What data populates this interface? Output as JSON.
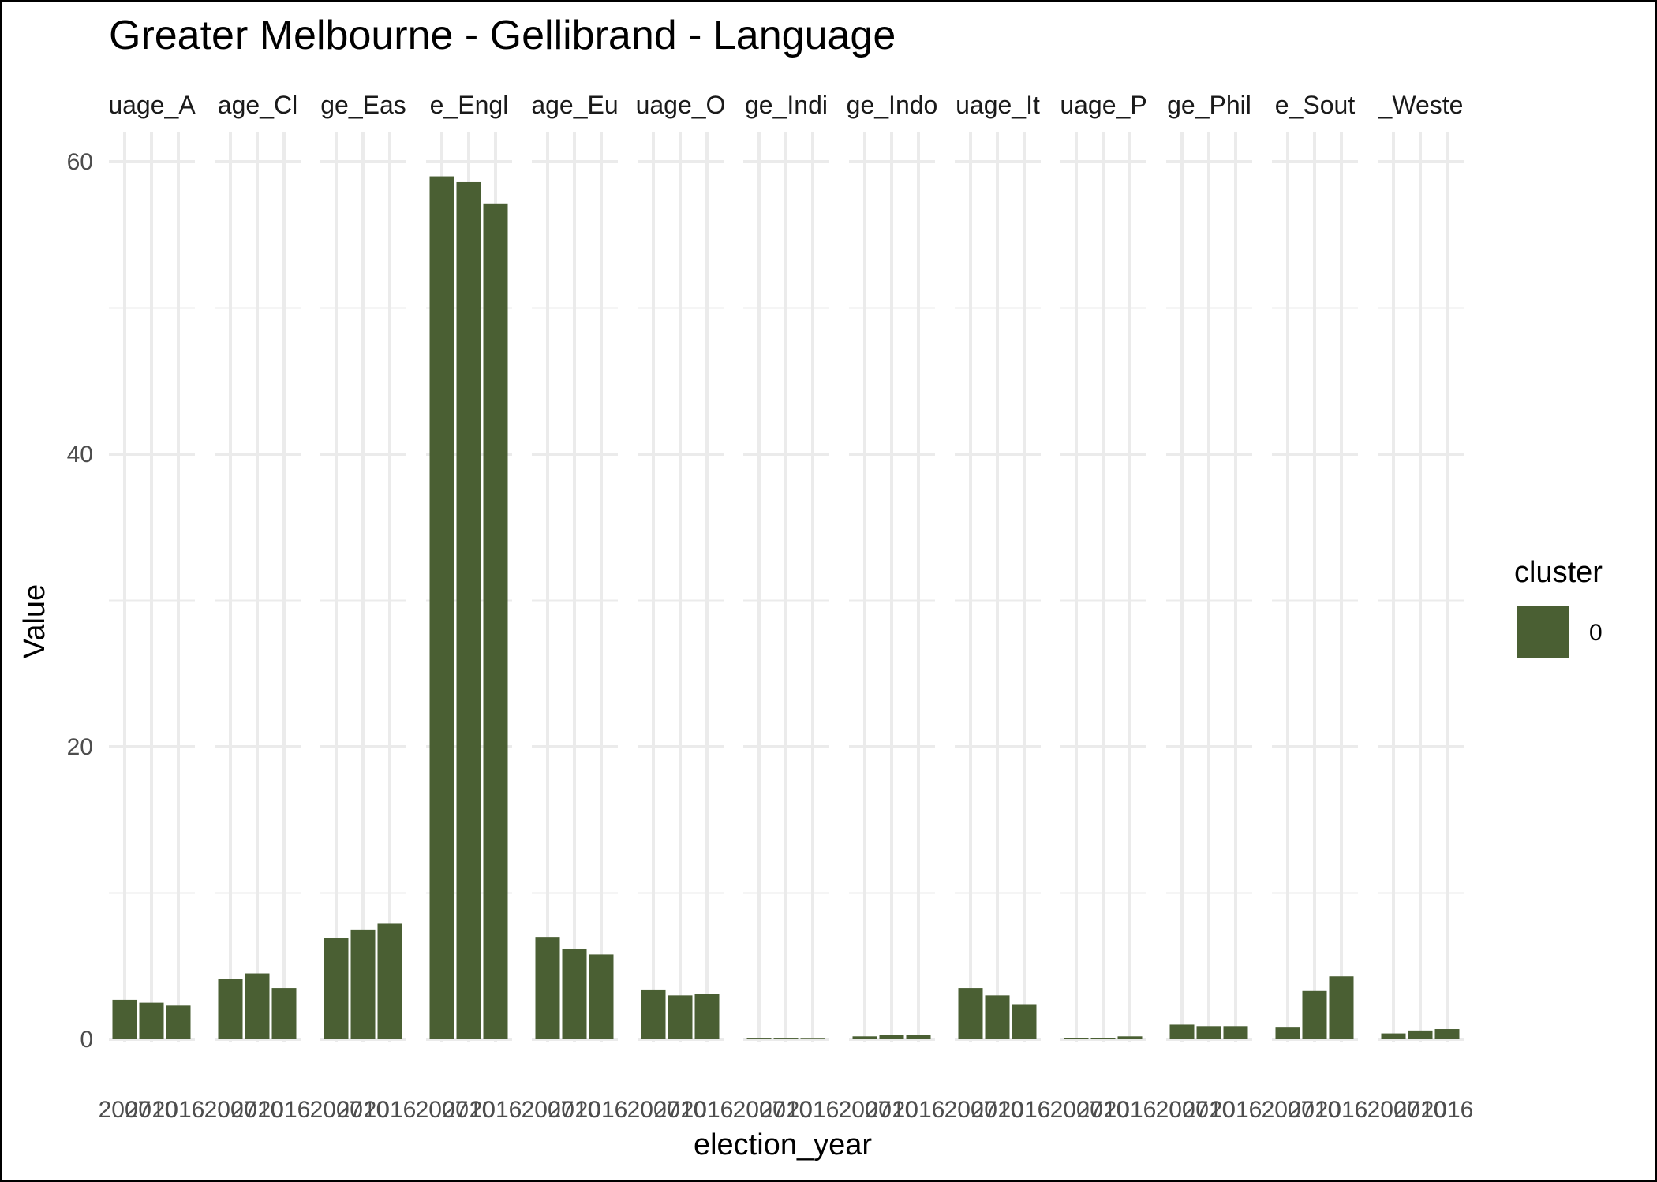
{
  "chart_data": {
    "type": "bar",
    "title": "Greater Melbourne - Gellibrand - Language",
    "xlabel": "election_year",
    "ylabel": "Value",
    "ylim": [
      0,
      62
    ],
    "yticks": [
      "0",
      "20",
      "40",
      "60"
    ],
    "grid": true,
    "bar_color": "#4a5f33",
    "categories": [
      "2007",
      "2010",
      "2016"
    ],
    "category_tick_labels": [
      "2007",
      "2010",
      "2016"
    ],
    "facets": [
      {
        "strip": "uage_A",
        "values": [
          2.7,
          2.5,
          2.3
        ]
      },
      {
        "strip": "age_Cl",
        "values": [
          4.1,
          4.5,
          3.5
        ]
      },
      {
        "strip": "ge_Eas",
        "values": [
          6.9,
          7.5,
          7.9
        ]
      },
      {
        "strip": "e_Engl",
        "values": [
          59.0,
          58.6,
          57.1
        ]
      },
      {
        "strip": "age_Eu",
        "values": [
          7.0,
          6.2,
          5.8
        ]
      },
      {
        "strip": "uage_O",
        "values": [
          3.4,
          3.0,
          3.1
        ]
      },
      {
        "strip": "ge_Indi",
        "values": [
          0.05,
          0.05,
          0.04
        ]
      },
      {
        "strip": "ge_Indo",
        "values": [
          0.2,
          0.3,
          0.3
        ]
      },
      {
        "strip": "uage_It",
        "values": [
          3.5,
          3.0,
          2.4
        ]
      },
      {
        "strip": "uage_P",
        "values": [
          0.1,
          0.1,
          0.2
        ]
      },
      {
        "strip": "ge_Phil",
        "values": [
          1.0,
          0.9,
          0.9
        ]
      },
      {
        "strip": "e_Sout",
        "values": [
          0.8,
          3.3,
          4.3
        ]
      },
      {
        "strip": "_Weste",
        "values": [
          0.4,
          0.6,
          0.7
        ]
      }
    ],
    "legend": {
      "title": "cluster",
      "position": "right",
      "entries": [
        {
          "label": "0",
          "color": "#4a5f33"
        }
      ]
    }
  }
}
